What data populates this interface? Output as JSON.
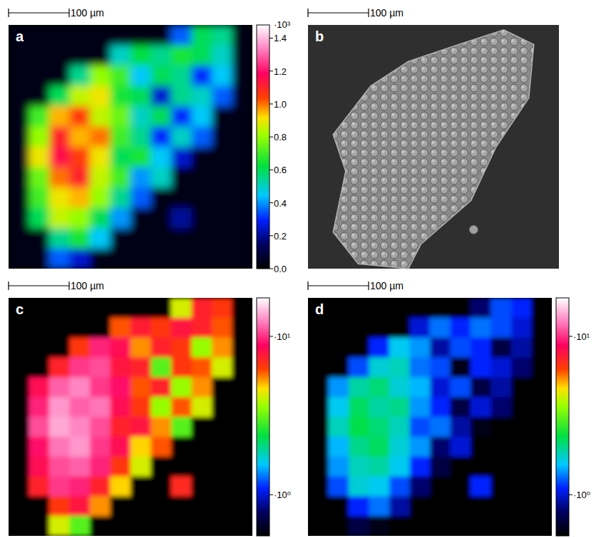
{
  "chart_data": [
    {
      "type": "heatmap",
      "panel": "a",
      "scale_bar": "100 µm",
      "tick_labels": false,
      "log": false,
      "colorbar_lim": [
        0,
        1.48
      ],
      "colorbar_ticks": [
        {
          "value": 0,
          "label": "0.0"
        },
        0.2,
        0.4,
        0.6,
        0.8,
        {
          "value": 1,
          "label": "1.0"
        },
        1.2,
        1.4
      ],
      "colorbar_multiplier": "·10³",
      "cells": [
        [
          0.03,
          0.03,
          0.03,
          0.03,
          0.03,
          0.03,
          0.03,
          0.03,
          0.35,
          0.6,
          0.55,
          0.03
        ],
        [
          0.03,
          0.03,
          0.03,
          0.03,
          0.03,
          0.5,
          0.62,
          0.55,
          0.65,
          0.6,
          0.5,
          0.03
        ],
        [
          0.03,
          0.03,
          0.03,
          0.55,
          0.8,
          0.7,
          0.45,
          0.6,
          0.55,
          0.3,
          0.45,
          0.03
        ],
        [
          0.03,
          0.03,
          0.6,
          0.85,
          0.9,
          0.65,
          0.6,
          0.25,
          0.55,
          0.5,
          0.35,
          0.03
        ],
        [
          0.03,
          0.7,
          0.95,
          1.05,
          0.85,
          0.75,
          0.5,
          0.6,
          0.3,
          0.45,
          0.03,
          0.03
        ],
        [
          0.03,
          0.8,
          1.1,
          0.95,
          1.0,
          0.7,
          0.55,
          0.3,
          0.5,
          0.35,
          0.03,
          0.03
        ],
        [
          0.03,
          0.9,
          1.15,
          1.05,
          0.9,
          0.6,
          0.65,
          0.45,
          0.25,
          0.03,
          0.03,
          0.03
        ],
        [
          0.03,
          0.75,
          1.0,
          1.1,
          0.85,
          0.7,
          0.4,
          0.5,
          0.03,
          0.03,
          0.03,
          0.03
        ],
        [
          0.03,
          0.7,
          0.9,
          0.95,
          0.8,
          0.55,
          0.35,
          0.03,
          0.03,
          0.03,
          0.03,
          0.03
        ],
        [
          0.03,
          0.6,
          0.85,
          0.8,
          0.6,
          0.4,
          0.03,
          0.03,
          0.2,
          0.03,
          0.03,
          0.03
        ],
        [
          0.03,
          0.03,
          0.55,
          0.65,
          0.45,
          0.03,
          0.03,
          0.03,
          0.03,
          0.03,
          0.03,
          0.03
        ],
        [
          0.03,
          0.03,
          0.35,
          0.25,
          0.03,
          0.03,
          0.03,
          0.03,
          0.03,
          0.03,
          0.03,
          0.03
        ]
      ]
    },
    {
      "type": "heatmap",
      "panel": "c",
      "scale_bar": "100 µm",
      "tick_labels": false,
      "log": true,
      "colorbar_lim": [
        0.55,
        17.5
      ],
      "colorbar_ticks": [
        {
          "value": 10,
          "label": "·10¹"
        },
        {
          "value": 1,
          "label": "·10⁰"
        }
      ],
      "cells": [
        [
          0.55,
          0.55,
          0.55,
          0.55,
          0.55,
          0.55,
          0.55,
          0.55,
          4.2,
          7.2,
          6.6,
          0.55
        ],
        [
          0.55,
          0.55,
          0.55,
          0.55,
          0.55,
          6,
          7.4,
          6.6,
          7.8,
          7.2,
          6,
          0.55
        ],
        [
          0.55,
          0.55,
          0.55,
          6.6,
          9.6,
          8.4,
          5.4,
          7.2,
          6.6,
          3.6,
          5.4,
          0.55
        ],
        [
          0.55,
          0.55,
          7.2,
          10.2,
          10.8,
          7.8,
          7.2,
          3,
          6.6,
          6,
          4.2,
          0.55
        ],
        [
          0.55,
          8.4,
          11.4,
          12.6,
          10.2,
          9,
          6,
          7.2,
          3.6,
          5.4,
          0.55,
          0.55
        ],
        [
          0.55,
          9.6,
          13.2,
          11.4,
          12,
          8.4,
          6.6,
          3.6,
          6,
          4.2,
          0.55,
          0.55
        ],
        [
          0.55,
          10.8,
          13.8,
          12.6,
          10.8,
          7.2,
          7.8,
          5.4,
          3,
          0.55,
          0.55,
          0.55
        ],
        [
          0.55,
          9,
          12,
          13.2,
          10.2,
          8.4,
          4.8,
          6,
          0.55,
          0.55,
          0.55,
          0.55
        ],
        [
          0.55,
          8.4,
          10.8,
          11.4,
          9.6,
          6.6,
          4.2,
          0.55,
          0.55,
          0.55,
          0.55,
          0.55
        ],
        [
          0.55,
          7.2,
          10.2,
          9.6,
          7.2,
          4.8,
          0.55,
          0.55,
          7,
          0.55,
          0.55,
          0.55
        ],
        [
          0.55,
          0.55,
          6.6,
          7.8,
          5.4,
          0.55,
          0.55,
          0.55,
          0.55,
          0.55,
          0.55,
          0.55
        ],
        [
          0.55,
          0.55,
          4.2,
          3,
          0.55,
          0.55,
          0.55,
          0.55,
          0.55,
          0.55,
          0.55,
          0.55
        ]
      ]
    },
    {
      "type": "heatmap",
      "panel": "d",
      "scale_bar": "100 µm",
      "tick_labels": false,
      "log": true,
      "colorbar_lim": [
        0.55,
        17.5
      ],
      "colorbar_ticks": [
        {
          "value": 10,
          "label": "·10¹"
        },
        {
          "value": 1,
          "label": "·10⁰"
        }
      ],
      "cells": [
        [
          0.55,
          0.55,
          0.55,
          0.55,
          0.55,
          0.55,
          0.55,
          0.55,
          0.8,
          1.2,
          1.1,
          0.55
        ],
        [
          0.55,
          0.55,
          0.55,
          0.55,
          0.55,
          1,
          1.3,
          1.1,
          1.3,
          1.2,
          1,
          0.55
        ],
        [
          0.55,
          0.55,
          0.55,
          1.1,
          1.6,
          1.4,
          0.9,
          1.2,
          1.1,
          0.7,
          0.9,
          0.55
        ],
        [
          0.55,
          0.55,
          1.2,
          1.7,
          1.8,
          1.3,
          1.2,
          0.6,
          1.1,
          1,
          0.8,
          0.55
        ],
        [
          0.55,
          1.4,
          1.9,
          2.1,
          1.7,
          1.5,
          1,
          1.2,
          0.7,
          0.9,
          0.55,
          0.55
        ],
        [
          0.55,
          1.6,
          2.2,
          1.9,
          2,
          1.4,
          1.1,
          0.7,
          1,
          0.8,
          0.55,
          0.55
        ],
        [
          0.55,
          1.8,
          2.3,
          2.1,
          1.8,
          1.2,
          1.3,
          0.9,
          0.6,
          0.55,
          0.55,
          0.55
        ],
        [
          0.55,
          1.5,
          2,
          2.2,
          1.7,
          1.4,
          0.8,
          1,
          0.55,
          0.55,
          0.55,
          0.55
        ],
        [
          0.55,
          1.4,
          1.8,
          1.9,
          1.6,
          1.1,
          0.7,
          0.55,
          0.55,
          0.55,
          0.55,
          0.55
        ],
        [
          0.55,
          1.2,
          1.7,
          1.6,
          1.2,
          0.8,
          0.55,
          0.55,
          1.1,
          0.55,
          0.55,
          0.55
        ],
        [
          0.55,
          0.55,
          1.1,
          1.3,
          0.9,
          0.55,
          0.55,
          0.55,
          0.55,
          0.55,
          0.55,
          0.55
        ],
        [
          0.55,
          0.55,
          0.7,
          0.6,
          0.55,
          0.55,
          0.55,
          0.55,
          0.55,
          0.55,
          0.55,
          0.55
        ]
      ]
    }
  ],
  "image_panel": {
    "panel": "b",
    "scale_bar": "100 µm"
  }
}
